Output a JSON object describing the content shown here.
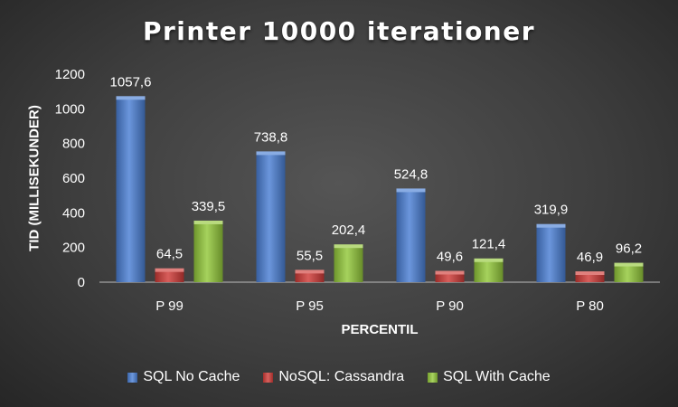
{
  "chart_data": {
    "type": "bar",
    "title": "Printer 10000 iterationer",
    "xlabel": "PERCENTIL",
    "ylabel": "TID (MILLISEKUNDER)",
    "categories": [
      "P 99",
      "P 95",
      "P 90",
      "P 80"
    ],
    "series": [
      {
        "name": "SQL No Cache",
        "color": "#4a7fd4",
        "values": [
          1057.6,
          738.8,
          524.8,
          319.9
        ],
        "labels": [
          "1057,6",
          "738,8",
          "524,8",
          "319,9"
        ]
      },
      {
        "name": "NoSQL: Cassandra",
        "color": "#d03b37",
        "values": [
          64.5,
          55.5,
          49.6,
          46.9
        ],
        "labels": [
          "64,5",
          "55,5",
          "49,6",
          "46,9"
        ]
      },
      {
        "name": "SQL With Cache",
        "color": "#93c83a",
        "values": [
          339.5,
          202.4,
          121.4,
          96.2
        ],
        "labels": [
          "339,5",
          "202,4",
          "121,4",
          "96,2"
        ]
      }
    ],
    "ylim": [
      0,
      1200
    ],
    "yticks": [
      0,
      200,
      400,
      600,
      800,
      1000,
      1200
    ],
    "grid": false,
    "legend_position": "bottom"
  }
}
